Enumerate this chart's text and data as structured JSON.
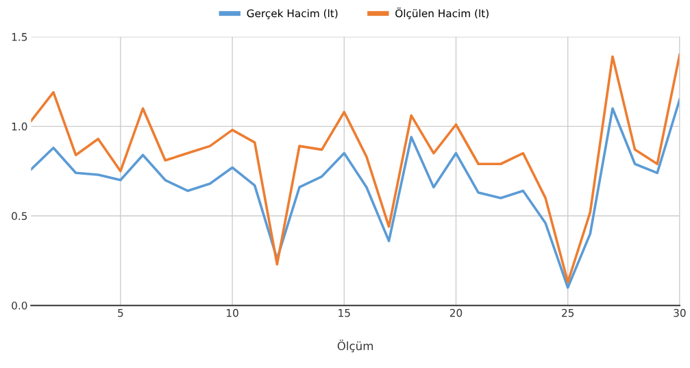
{
  "chart_data": {
    "type": "line",
    "xlabel": "Ölçüm",
    "x": [
      1,
      2,
      3,
      4,
      5,
      6,
      7,
      8,
      9,
      10,
      11,
      12,
      13,
      14,
      15,
      16,
      17,
      18,
      19,
      20,
      21,
      22,
      23,
      24,
      25,
      26,
      27,
      28,
      29,
      30
    ],
    "series": [
      {
        "name": "Gerçek Hacim (lt)",
        "color": "#5b9bd5",
        "values": [
          0.76,
          0.88,
          0.74,
          0.73,
          0.7,
          0.84,
          0.7,
          0.64,
          0.68,
          0.77,
          0.67,
          0.26,
          0.66,
          0.72,
          0.85,
          0.66,
          0.36,
          0.94,
          0.66,
          0.85,
          0.63,
          0.6,
          0.64,
          0.46,
          0.1,
          0.4,
          1.1,
          0.79,
          0.74,
          1.15
        ]
      },
      {
        "name": "Ölçülen Hacim (lt)",
        "color": "#ed7d31",
        "values": [
          1.03,
          1.19,
          0.84,
          0.93,
          0.75,
          1.1,
          0.81,
          0.85,
          0.89,
          0.98,
          0.91,
          0.23,
          0.89,
          0.87,
          1.08,
          0.83,
          0.44,
          1.06,
          0.85,
          1.01,
          0.79,
          0.79,
          0.85,
          0.6,
          0.13,
          0.52,
          1.39,
          0.87,
          0.79,
          1.4
        ]
      }
    ],
    "xlim": [
      1,
      30
    ],
    "xticks": [
      5,
      10,
      15,
      20,
      25,
      30
    ],
    "ylim": [
      0,
      1.5
    ],
    "yticks": [
      {
        "value": 0,
        "label": "0.0"
      },
      {
        "value": 0.5,
        "label": "0.5"
      },
      {
        "value": 1.0,
        "label": "1.0"
      },
      {
        "value": 1.5,
        "label": "1.5"
      }
    ],
    "grid": true,
    "legend": "top",
    "marker": "none",
    "line_style": "solid"
  }
}
